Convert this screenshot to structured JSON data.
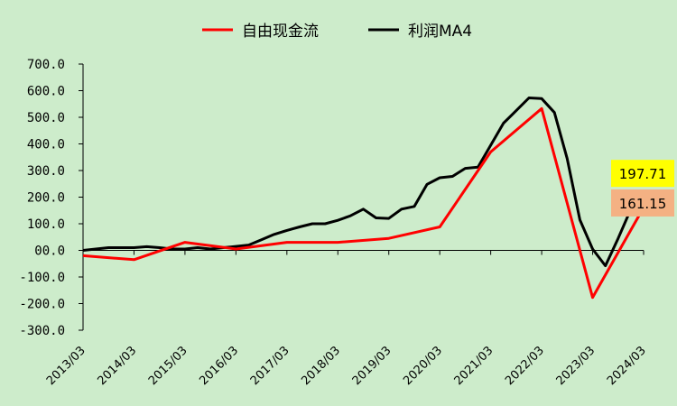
{
  "chart_data": {
    "type": "line",
    "title": "",
    "xlabel": "",
    "ylabel": "",
    "ylim": [
      -300,
      700
    ],
    "ytick_labels": [
      "700.0",
      "600.0",
      "500.0",
      "400.0",
      "300.0",
      "200.0",
      "100.0",
      "00.0",
      "-100.0",
      "-200.0",
      "-300.0"
    ],
    "ytick_values": [
      700,
      600,
      500,
      400,
      300,
      200,
      100,
      0,
      -100,
      -200,
      -300
    ],
    "xtick_labels": [
      "2013/03",
      "2014/03",
      "2015/03",
      "2016/03",
      "2017/03",
      "2018/03",
      "2019/03",
      "2020/03",
      "2021/03",
      "2022/03",
      "2023/03",
      "2024/03"
    ],
    "legend": {
      "placement": "top-center"
    },
    "grid": false,
    "series": [
      {
        "name": "自由现金流",
        "color": "#ff0000",
        "points": [
          [
            "2013/03",
            -20
          ],
          [
            "2014/03",
            -35
          ],
          [
            "2015/03",
            30
          ],
          [
            "2016/03",
            5
          ],
          [
            "2017/03",
            30
          ],
          [
            "2018/03",
            30
          ],
          [
            "2019/03",
            45
          ],
          [
            "2020/03",
            88
          ],
          [
            "2021/03",
            370
          ],
          [
            "2022/03",
            533
          ],
          [
            "2023/03",
            -177
          ],
          [
            "2024/03",
            161.15
          ]
        ]
      },
      {
        "name": "利润MA4",
        "color": "#000000",
        "points": [
          [
            "2013/03",
            0
          ],
          [
            "2013/06",
            5
          ],
          [
            "2013/09",
            10
          ],
          [
            "2013/12",
            10
          ],
          [
            "2014/03",
            10
          ],
          [
            "2014/06",
            14
          ],
          [
            "2014/09",
            10
          ],
          [
            "2014/12",
            5
          ],
          [
            "2015/03",
            5
          ],
          [
            "2015/06",
            10
          ],
          [
            "2015/09",
            5
          ],
          [
            "2015/12",
            10
          ],
          [
            "2016/03",
            15
          ],
          [
            "2016/06",
            20
          ],
          [
            "2016/09",
            40
          ],
          [
            "2016/12",
            60
          ],
          [
            "2017/03",
            75
          ],
          [
            "2017/06",
            88
          ],
          [
            "2017/09",
            100
          ],
          [
            "2017/12",
            100
          ],
          [
            "2018/03",
            113
          ],
          [
            "2018/06",
            130
          ],
          [
            "2018/09",
            155
          ],
          [
            "2018/12",
            122
          ],
          [
            "2019/03",
            120
          ],
          [
            "2019/06",
            155
          ],
          [
            "2019/09",
            165
          ],
          [
            "2019/12",
            248
          ],
          [
            "2020/03",
            273
          ],
          [
            "2020/06",
            278
          ],
          [
            "2020/09",
            308
          ],
          [
            "2020/12",
            313
          ],
          [
            "2021/03",
            395
          ],
          [
            "2021/06",
            478
          ],
          [
            "2021/09",
            525
          ],
          [
            "2021/12",
            573
          ],
          [
            "2022/03",
            570
          ],
          [
            "2022/06",
            518
          ],
          [
            "2022/09",
            345
          ],
          [
            "2022/12",
            115
          ],
          [
            "2023/03",
            5
          ],
          [
            "2023/06",
            -58
          ],
          [
            "2023/09",
            45
          ],
          [
            "2023/12",
            155
          ],
          [
            "2024/03",
            197.71
          ]
        ]
      }
    ],
    "annotations": [
      {
        "text": "197.71",
        "series": "利润MA4",
        "background": "#ffff00"
      },
      {
        "text": "161.15",
        "series": "自由现金流",
        "background": "#f4b183"
      }
    ]
  }
}
